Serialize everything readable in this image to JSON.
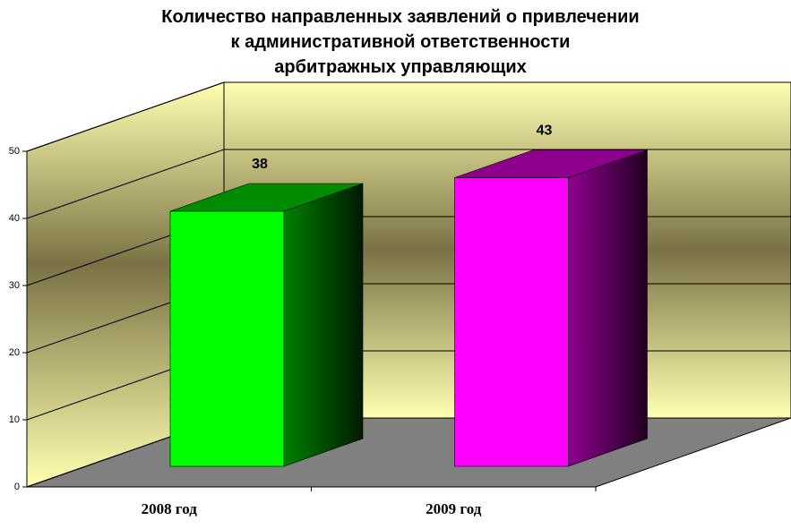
{
  "chart_data": {
    "type": "bar3d",
    "title": "Количество направленных заявлений о привлечении к административной ответственности арбитражных управляющих",
    "categories": [
      "2008 год",
      "2009 год"
    ],
    "values": [
      38,
      43
    ],
    "colors": [
      "#00ff00",
      "#ff00ff"
    ],
    "ylim": [
      0,
      50
    ],
    "yticks": [
      0,
      10,
      20,
      30,
      40,
      50
    ],
    "grid": true
  }
}
